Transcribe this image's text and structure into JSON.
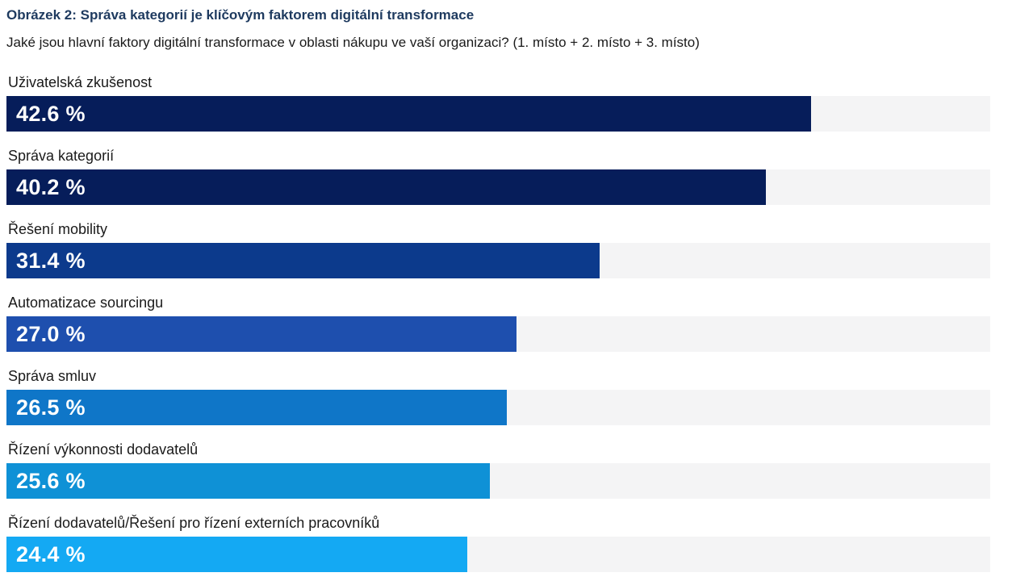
{
  "chart_data": {
    "type": "bar",
    "orientation": "horizontal",
    "title": "Obrázek 2: Správa kategorií je klíčovým faktorem digitální transformace",
    "subtitle": "Jaké jsou hlavní faktory digitální transformace v oblasti nákupu ve vaší organizaci? (1. místo + 2. místo + 3. místo)",
    "categories": [
      "Uživatelská zkušenost",
      "Správa kategorií",
      "Řešení mobility",
      "Automatizace sourcingu",
      "Správa smluv",
      "Řízení výkonnosti dodavatelů",
      "Řízení dodavatelů/Řešení pro řízení externích pracovníků"
    ],
    "values": [
      42.6,
      40.2,
      31.4,
      27.0,
      26.5,
      25.6,
      24.4
    ],
    "value_labels": [
      "42.6 %",
      "40.2 %",
      "31.4 %",
      "27.0 %",
      "26.5 %",
      "25.6 %",
      "24.4 %"
    ],
    "bar_colors": [
      "#061d5a",
      "#061d5a",
      "#0c3a8c",
      "#1e4fae",
      "#0f76c8",
      "#0f91d6",
      "#14a9f3"
    ],
    "xlim": [
      0,
      52.1
    ],
    "xlabel": "",
    "ylabel": "",
    "grid": false,
    "legend": false,
    "track_color": "#f4f4f5",
    "value_text_color": "#ffffff"
  },
  "colors": {
    "title": "#1e3a5f",
    "text": "#1a1a1a",
    "background": "#ffffff"
  }
}
